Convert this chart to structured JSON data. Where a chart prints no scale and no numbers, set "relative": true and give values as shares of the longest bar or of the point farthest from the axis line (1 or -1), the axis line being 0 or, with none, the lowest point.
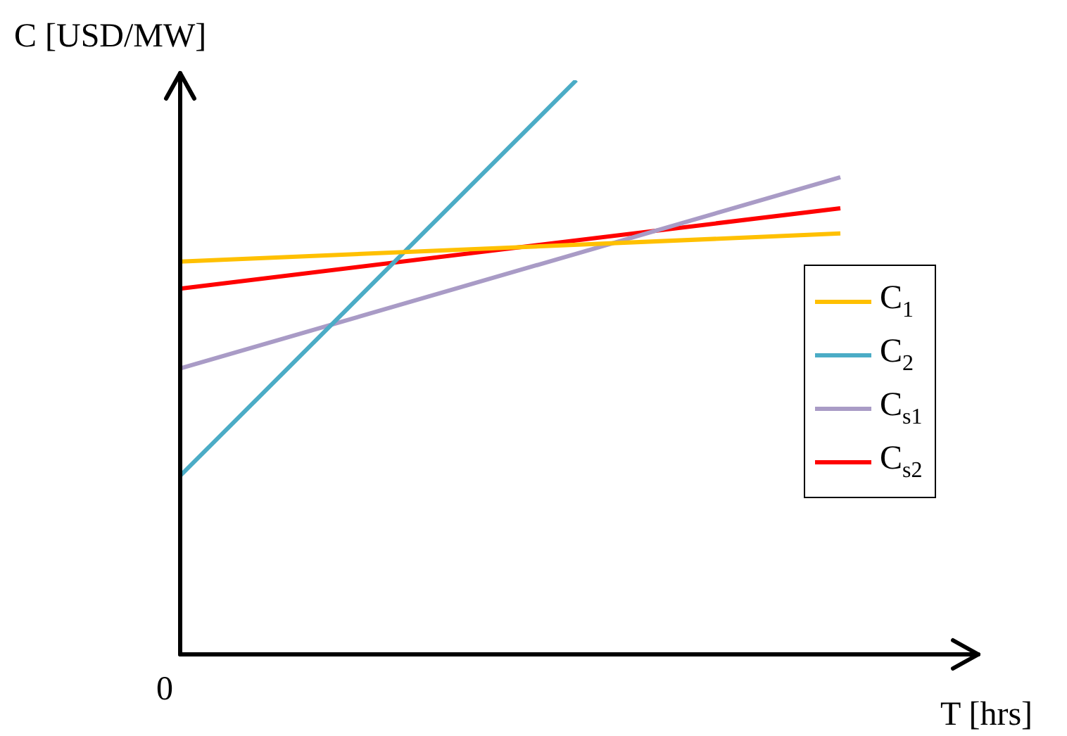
{
  "chart_data": {
    "type": "line",
    "relative": true,
    "xlabel": "T [hrs]",
    "ylabel": "C [USD/MW]",
    "annotations": [
      "0"
    ],
    "legend": "right",
    "categories": [
      null,
      null,
      null,
      null,
      null,
      null
    ],
    "series": [
      {
        "name": "C$_{1}$",
        "color": "#ffc000",
        "values": [
          0.684,
          null,
          null,
          null,
          null,
          0.733
        ]
      },
      {
        "name": "C$_{2}$",
        "color": "#4bacc6",
        "values": [
          0.311,
          null,
          null,
          1,
          null,
          null
        ]
      },
      {
        "name": "C$_{s1}$",
        "color": "#a99bc6",
        "values": [
          0.498,
          null,
          null,
          null,
          null,
          0.831
        ]
      },
      {
        "name": "C$_{s2}$",
        "color": "#ff0000",
        "values": [
          0.637,
          null,
          null,
          null,
          null,
          0.777
        ]
      }
    ]
  }
}
